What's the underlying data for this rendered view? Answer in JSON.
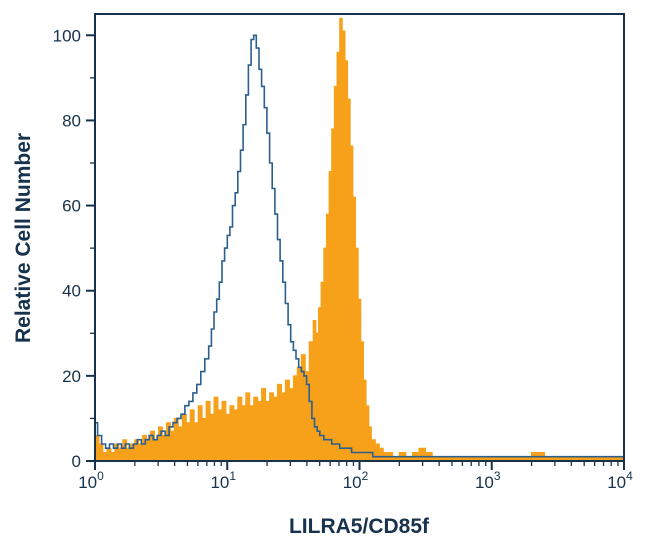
{
  "figure": {
    "kind": "flow-cytometry-histogram"
  },
  "colors": {
    "outline_series": "#2B5F8E",
    "filled_series": "#F7A11A",
    "axis": "#16324C",
    "background": "#FFFFFF"
  },
  "chart_data": {
    "type": "area",
    "x_scale": "log10",
    "xlim": [
      1,
      10000
    ],
    "ylim": [
      0,
      105
    ],
    "xlabel": "LILRA5/CD85f",
    "ylabel": "Relative Cell Number",
    "x_tick_base": "10",
    "x_tick_exponents": [
      0,
      1,
      2,
      3,
      4
    ],
    "y_ticks": [
      0,
      20,
      40,
      60,
      80,
      100
    ],
    "y_minor_ticks": [
      10,
      30,
      50,
      70,
      90
    ],
    "grid": false,
    "legend": "none",
    "series": [
      {
        "name": "filled_histogram",
        "style": "filled",
        "color": "#F7A11A",
        "peak_x_log10": 1.85,
        "peak_y": 104,
        "points": [
          [
            0.0,
            6
          ],
          [
            0.03,
            4
          ],
          [
            0.06,
            2
          ],
          [
            0.09,
            3
          ],
          [
            0.12,
            2
          ],
          [
            0.15,
            4
          ],
          [
            0.18,
            3
          ],
          [
            0.21,
            5
          ],
          [
            0.24,
            3
          ],
          [
            0.27,
            4
          ],
          [
            0.3,
            5
          ],
          [
            0.33,
            4
          ],
          [
            0.36,
            6
          ],
          [
            0.39,
            5
          ],
          [
            0.42,
            7
          ],
          [
            0.45,
            5
          ],
          [
            0.48,
            8
          ],
          [
            0.51,
            6
          ],
          [
            0.54,
            9
          ],
          [
            0.57,
            7
          ],
          [
            0.6,
            10
          ],
          [
            0.63,
            8
          ],
          [
            0.66,
            11
          ],
          [
            0.69,
            9
          ],
          [
            0.72,
            12
          ],
          [
            0.75,
            9
          ],
          [
            0.78,
            13
          ],
          [
            0.81,
            10
          ],
          [
            0.84,
            14
          ],
          [
            0.87,
            11
          ],
          [
            0.9,
            15
          ],
          [
            0.93,
            12
          ],
          [
            0.96,
            14
          ],
          [
            0.99,
            11
          ],
          [
            1.02,
            13
          ],
          [
            1.05,
            12
          ],
          [
            1.08,
            15
          ],
          [
            1.11,
            13
          ],
          [
            1.14,
            16
          ],
          [
            1.17,
            13
          ],
          [
            1.2,
            15
          ],
          [
            1.23,
            14
          ],
          [
            1.26,
            17
          ],
          [
            1.29,
            14
          ],
          [
            1.32,
            16
          ],
          [
            1.35,
            15
          ],
          [
            1.38,
            18
          ],
          [
            1.41,
            16
          ],
          [
            1.44,
            19
          ],
          [
            1.47,
            17
          ],
          [
            1.5,
            20
          ],
          [
            1.53,
            22
          ],
          [
            1.56,
            25
          ],
          [
            1.59,
            21
          ],
          [
            1.62,
            28
          ],
          [
            1.65,
            33
          ],
          [
            1.67,
            30
          ],
          [
            1.69,
            36
          ],
          [
            1.71,
            42
          ],
          [
            1.73,
            50
          ],
          [
            1.75,
            58
          ],
          [
            1.77,
            68
          ],
          [
            1.79,
            78
          ],
          [
            1.81,
            88
          ],
          [
            1.83,
            96
          ],
          [
            1.85,
            104
          ],
          [
            1.87,
            101
          ],
          [
            1.89,
            94
          ],
          [
            1.91,
            85
          ],
          [
            1.93,
            74
          ],
          [
            1.95,
            62
          ],
          [
            1.97,
            50
          ],
          [
            1.99,
            38
          ],
          [
            2.01,
            28
          ],
          [
            2.03,
            19
          ],
          [
            2.05,
            13
          ],
          [
            2.07,
            8
          ],
          [
            2.09,
            5
          ],
          [
            2.12,
            4
          ],
          [
            2.15,
            3
          ],
          [
            2.18,
            2
          ],
          [
            2.21,
            2
          ],
          [
            2.25,
            1
          ],
          [
            2.3,
            2
          ],
          [
            2.35,
            1
          ],
          [
            2.4,
            2
          ],
          [
            2.45,
            3
          ],
          [
            2.5,
            2
          ],
          [
            2.55,
            1
          ],
          [
            2.6,
            1
          ],
          [
            2.7,
            1
          ],
          [
            2.8,
            1
          ],
          [
            2.9,
            1
          ],
          [
            3.0,
            1
          ],
          [
            3.1,
            1
          ],
          [
            3.2,
            1
          ],
          [
            3.3,
            2
          ],
          [
            3.4,
            1
          ],
          [
            3.5,
            1
          ],
          [
            3.6,
            1
          ],
          [
            3.7,
            1
          ],
          [
            3.8,
            1
          ],
          [
            3.9,
            1
          ],
          [
            4.0,
            1
          ]
        ]
      },
      {
        "name": "open_outline_histogram",
        "style": "outline",
        "color": "#2B5F8E",
        "peak_x_log10": 1.19,
        "peak_y": 100,
        "points": [
          [
            0.0,
            9
          ],
          [
            0.02,
            6
          ],
          [
            0.05,
            4
          ],
          [
            0.08,
            3
          ],
          [
            0.11,
            4
          ],
          [
            0.14,
            3
          ],
          [
            0.17,
            4
          ],
          [
            0.2,
            3
          ],
          [
            0.23,
            4
          ],
          [
            0.26,
            3
          ],
          [
            0.29,
            4
          ],
          [
            0.32,
            5
          ],
          [
            0.35,
            4
          ],
          [
            0.38,
            5
          ],
          [
            0.41,
            6
          ],
          [
            0.44,
            5
          ],
          [
            0.47,
            6
          ],
          [
            0.5,
            7
          ],
          [
            0.53,
            6
          ],
          [
            0.56,
            8
          ],
          [
            0.59,
            9
          ],
          [
            0.62,
            10
          ],
          [
            0.65,
            11
          ],
          [
            0.68,
            13
          ],
          [
            0.71,
            14
          ],
          [
            0.74,
            16
          ],
          [
            0.77,
            18
          ],
          [
            0.8,
            21
          ],
          [
            0.83,
            24
          ],
          [
            0.86,
            27
          ],
          [
            0.88,
            31
          ],
          [
            0.9,
            35
          ],
          [
            0.92,
            38
          ],
          [
            0.94,
            42
          ],
          [
            0.96,
            47
          ],
          [
            0.98,
            50
          ],
          [
            1.0,
            53
          ],
          [
            1.02,
            55
          ],
          [
            1.04,
            60
          ],
          [
            1.06,
            63
          ],
          [
            1.08,
            68
          ],
          [
            1.1,
            73
          ],
          [
            1.12,
            79
          ],
          [
            1.14,
            86
          ],
          [
            1.16,
            93
          ],
          [
            1.18,
            99
          ],
          [
            1.2,
            100
          ],
          [
            1.22,
            97
          ],
          [
            1.24,
            92
          ],
          [
            1.26,
            88
          ],
          [
            1.28,
            83
          ],
          [
            1.3,
            77
          ],
          [
            1.32,
            70
          ],
          [
            1.34,
            64
          ],
          [
            1.36,
            58
          ],
          [
            1.38,
            52
          ],
          [
            1.4,
            47
          ],
          [
            1.42,
            42
          ],
          [
            1.44,
            37
          ],
          [
            1.46,
            32
          ],
          [
            1.48,
            28
          ],
          [
            1.5,
            26
          ],
          [
            1.52,
            24
          ],
          [
            1.54,
            22
          ],
          [
            1.56,
            21
          ],
          [
            1.58,
            20
          ],
          [
            1.6,
            18
          ],
          [
            1.62,
            14
          ],
          [
            1.64,
            10
          ],
          [
            1.66,
            8
          ],
          [
            1.68,
            7
          ],
          [
            1.7,
            6
          ],
          [
            1.73,
            5
          ],
          [
            1.76,
            5
          ],
          [
            1.79,
            4
          ],
          [
            1.82,
            4
          ],
          [
            1.85,
            3
          ],
          [
            1.88,
            3
          ],
          [
            1.91,
            3
          ],
          [
            1.94,
            2
          ],
          [
            1.97,
            2
          ],
          [
            2.0,
            2
          ],
          [
            2.05,
            2
          ],
          [
            2.1,
            1
          ],
          [
            2.2,
            1
          ],
          [
            2.3,
            1
          ],
          [
            2.4,
            1
          ],
          [
            2.5,
            1
          ],
          [
            2.6,
            1
          ],
          [
            2.8,
            1
          ],
          [
            3.0,
            1
          ],
          [
            3.2,
            1
          ],
          [
            3.4,
            1
          ],
          [
            3.6,
            1
          ],
          [
            3.8,
            1
          ],
          [
            4.0,
            1
          ]
        ]
      }
    ]
  }
}
